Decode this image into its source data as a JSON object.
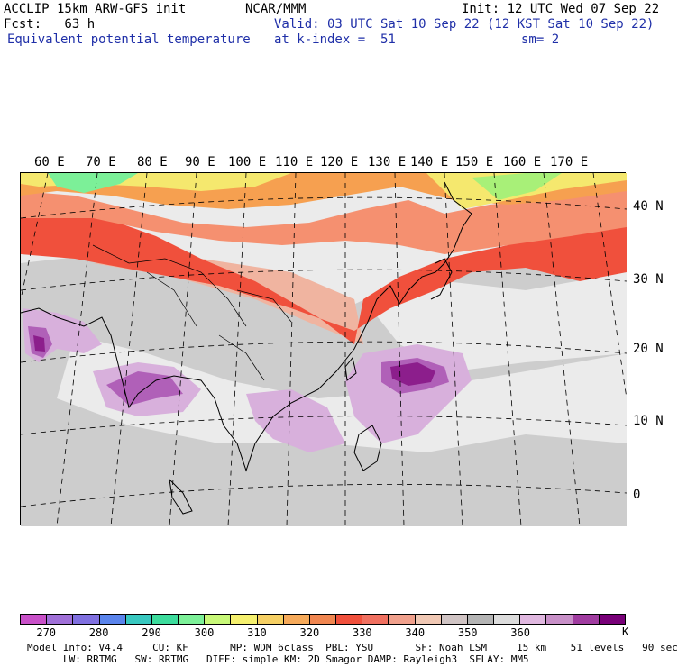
{
  "header": {
    "left_line1": "ACCLIP 15km ARW-GFS init",
    "left_line2": "Fcst:   63 h",
    "field_name": "Equivalent potential temperature",
    "center_line1": "NCAR/MMM",
    "init": "Init: 12 UTC Wed 07 Sep 22",
    "valid": "Valid: 03 UTC Sat 10 Sep 22 (12 KST Sat 10 Sep 22)",
    "level": "at k-index =  51",
    "smooth": "sm= 2"
  },
  "map": {
    "lon_labels": [
      "60 E",
      "70 E",
      "80 E",
      "90 E",
      "100 E",
      "110 E",
      "120 E",
      "130 E",
      "140 E",
      "150 E",
      "160 E",
      "170 E"
    ],
    "lat_labels": [
      "40 N",
      "30 N",
      "20 N",
      "10 N",
      "0"
    ],
    "colors": {
      "purple_deep": "#8c1e8c",
      "purple": "#b060b8",
      "lilac": "#d8b0dc",
      "light_gray": "#ebebeb",
      "gray": "#c8c8c8",
      "pink": "#f0b4a0",
      "salmon": "#f59070",
      "red": "#f0503c",
      "orange": "#f6a050",
      "yellow": "#f5e86e",
      "lime": "#a8f078",
      "green": "#7cf098"
    }
  },
  "colorbar": {
    "colors": [
      "#c850c8",
      "#a070d8",
      "#8070e0",
      "#5a84ec",
      "#38c8c0",
      "#3cdc9c",
      "#7cf098",
      "#c8f878",
      "#f5f06e",
      "#f6d064",
      "#f6aa5a",
      "#f08650",
      "#f0503c",
      "#f07060",
      "#f0a08c",
      "#f0c8b4",
      "#d0c4c4",
      "#b4b4b4",
      "#dcdcdc",
      "#e0b8e0",
      "#c890c8",
      "#a03ca0",
      "#780078"
    ],
    "tick_labels": [
      "270",
      "280",
      "290",
      "300",
      "310",
      "320",
      "330",
      "340",
      "350",
      "360"
    ],
    "unit": "K"
  },
  "footer": {
    "line1": "Model Info: V4.4     CU: KF       MP: WDM 6class  PBL: YSU       SF: Noah LSM     15 km    51 levels   90 sec",
    "line2": "LW: RRTMG   SW: RRTMG   DIFF: simple KM: 2D Smagor DAMP: Rayleigh3  SFLAY: MM5"
  }
}
